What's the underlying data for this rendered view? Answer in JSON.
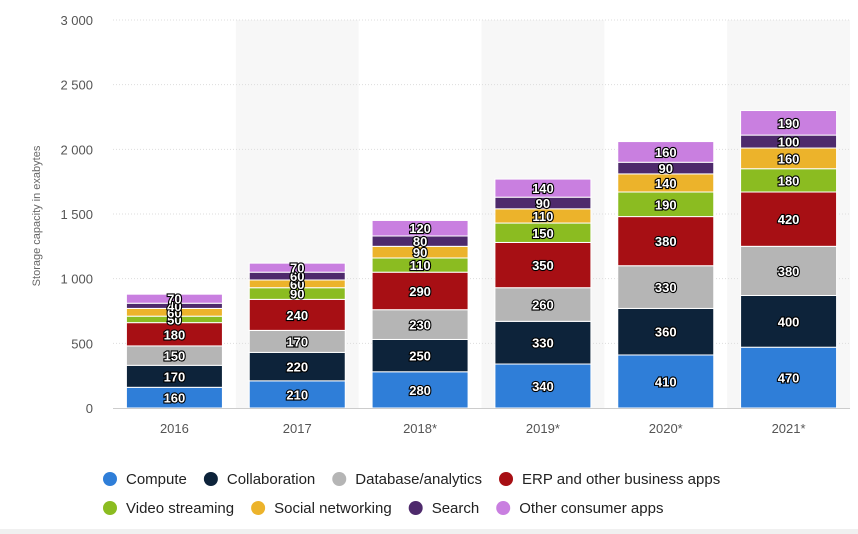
{
  "chart_data": {
    "type": "bar",
    "stacked": true,
    "categories": [
      "2016",
      "2017",
      "2018*",
      "2019*",
      "2020*",
      "2021*"
    ],
    "ylabel": "Storage capacity in exabytes",
    "ylim": [
      0,
      3000
    ],
    "yticks": [
      0,
      500,
      1000,
      1500,
      2000,
      2500,
      3000
    ],
    "ytick_labels": [
      "0",
      "500",
      "1 000",
      "1 500",
      "2 000",
      "2 500",
      "3 000"
    ],
    "grid": true,
    "alternating_column_shading": true,
    "legend_position": "bottom",
    "series": [
      {
        "name": "Compute",
        "color": "#2f7ed8",
        "values": [
          160,
          210,
          280,
          340,
          410,
          470
        ]
      },
      {
        "name": "Collaboration",
        "color": "#0d233a",
        "values": [
          170,
          220,
          250,
          330,
          360,
          400
        ]
      },
      {
        "name": "Database/analytics",
        "color": "#b5b5b5",
        "values": [
          150,
          170,
          230,
          260,
          330,
          380
        ]
      },
      {
        "name": "ERP and other business apps",
        "color": "#a70f14",
        "values": [
          180,
          240,
          290,
          350,
          380,
          420
        ]
      },
      {
        "name": "Video streaming",
        "color": "#8bbc21",
        "values": [
          50,
          90,
          110,
          150,
          190,
          180
        ]
      },
      {
        "name": "Social networking",
        "color": "#ecb32b",
        "values": [
          60,
          60,
          90,
          110,
          140,
          160
        ]
      },
      {
        "name": "Search",
        "color": "#4e2a6c",
        "values": [
          40,
          60,
          80,
          90,
          90,
          100
        ]
      },
      {
        "name": "Other consumer apps",
        "color": "#c97fe0",
        "values": [
          70,
          70,
          120,
          140,
          160,
          190
        ]
      }
    ]
  }
}
